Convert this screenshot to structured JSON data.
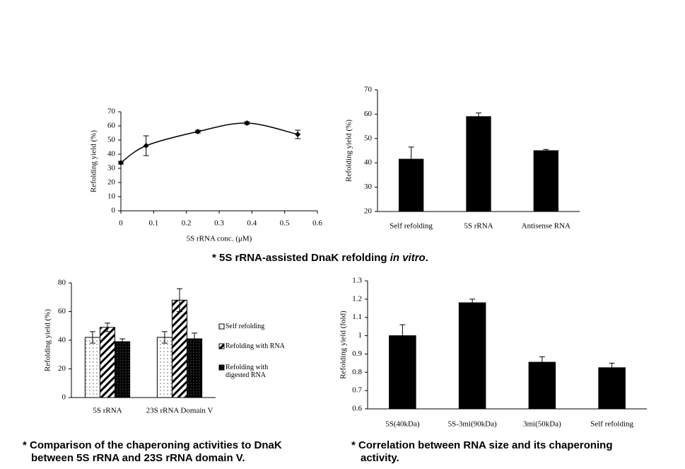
{
  "chart_data": [
    {
      "type": "line",
      "x": [
        0,
        0.077,
        0.235,
        0.385,
        0.54
      ],
      "values": [
        34,
        46,
        56,
        62,
        54
      ],
      "errors": [
        1,
        7,
        1,
        1,
        3
      ],
      "color": "#000000",
      "xlabel": "5S rRNA conc. (μM)",
      "ylabel": "Refolding yield (%)",
      "xlim": [
        0,
        0.6
      ],
      "xticks": [
        0,
        0.1,
        0.2,
        0.3,
        0.4,
        0.5,
        0.6
      ],
      "ylim": [
        0,
        70
      ],
      "yticks": [
        0,
        10,
        20,
        30,
        40,
        50,
        60,
        70
      ],
      "grid": false
    },
    {
      "type": "bar",
      "categories": [
        "Self refolding",
        "5S rRNA",
        "Antisense RNA"
      ],
      "values": [
        41.5,
        59,
        45
      ],
      "errors": [
        5,
        1.5,
        0.5
      ],
      "color": "#000000",
      "ylabel": "Refolding yield (%)",
      "ylim": [
        20,
        70
      ],
      "yticks": [
        20,
        30,
        40,
        50,
        60,
        70
      ],
      "grid": false
    },
    {
      "type": "bar",
      "categories": [
        "5S rRNA",
        "23S rRNA Domain V"
      ],
      "ylabel": "Refolding yield (%)",
      "series": [
        {
          "name": "Self refolding",
          "color": "#000000",
          "pattern": "dots",
          "values": [
            42,
            42
          ],
          "errors": [
            4,
            4
          ]
        },
        {
          "name": "Refolding with RNA",
          "color": "#000000",
          "pattern": "hatch",
          "values": [
            49,
            68
          ],
          "errors": [
            3,
            8
          ]
        },
        {
          "name": "Refolding with digested RNA",
          "color": "#000000",
          "pattern": "dark-dots",
          "values": [
            39,
            41
          ],
          "errors": [
            2,
            4
          ]
        }
      ],
      "ylim": [
        0,
        80
      ],
      "yticks": [
        0,
        20,
        40,
        60,
        80
      ],
      "grid": false,
      "legend": "right"
    },
    {
      "type": "bar",
      "categories": [
        "5S(40kDa)",
        "5S-3mi(90kDa)",
        "3mi(50kDa)",
        "Self refolding"
      ],
      "values": [
        1.0,
        1.18,
        0.855,
        0.825
      ],
      "errors": [
        0.06,
        0.02,
        0.03,
        0.025
      ],
      "color": "#000000",
      "ylabel": "Refolding yield (fold)",
      "ylim": [
        0.6,
        1.3
      ],
      "yticks": [
        0.6,
        0.7,
        0.8,
        0.9,
        1,
        1.1,
        1.2,
        1.3
      ],
      "grid": false
    }
  ],
  "captions": [
    {
      "lead": "* 5S rRNA-assisted DnaK refolding ",
      "italic": "in vitro",
      "end": "."
    },
    {
      "lines": [
        "* Comparison of the chaperoning activities to DnaK",
        "between 5S rRNA and 23S rRNA domain V."
      ]
    },
    {
      "lines": [
        "* Correlation between RNA size and its chaperoning",
        "activity."
      ]
    }
  ]
}
